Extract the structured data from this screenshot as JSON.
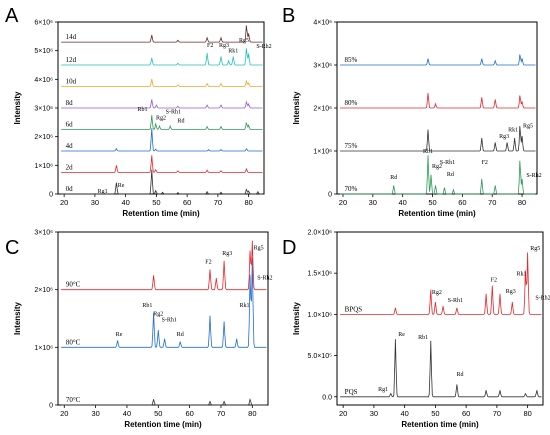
{
  "chart_data": [
    {
      "panel": "A",
      "type": "line",
      "xlabel": "Retention time (min)",
      "ylabel": "Intensity",
      "xlim": [
        18,
        85
      ],
      "xticks": [
        20,
        30,
        40,
        50,
        60,
        70,
        80
      ],
      "ylim": [
        0,
        6000000
      ],
      "yticks": [
        "0",
        "1×10⁶",
        "2×10⁶",
        "3×10⁶",
        "4×10⁶",
        "5×10⁶",
        "6×10⁶"
      ],
      "ytick_values": [
        0,
        1000000,
        2000000,
        3000000,
        4000000,
        5000000,
        6000000
      ],
      "series": [
        {
          "name": "0d",
          "color": "#333333",
          "baseline": 0,
          "peaks": [
            [
              37,
              400000
            ],
            [
              48.5,
              850000
            ],
            [
              49.8,
              120000
            ],
            [
              52,
              60000
            ],
            [
              57,
              50000
            ],
            [
              66.5,
              80000
            ],
            [
              71,
              60000
            ],
            [
              79.3,
              170000
            ],
            [
              80,
              100000
            ],
            [
              83,
              80000
            ]
          ]
        },
        {
          "name": "2d",
          "color": "#e8262b",
          "baseline": 750000,
          "peaks": [
            [
              37,
              250000
            ],
            [
              48.5,
              600000
            ],
            [
              49.8,
              100000
            ],
            [
              57,
              60000
            ],
            [
              66.5,
              80000
            ],
            [
              71,
              60000
            ],
            [
              79.3,
              130000
            ]
          ]
        },
        {
          "name": "4d",
          "color": "#1f6ed4",
          "baseline": 1500000,
          "peaks": [
            [
              37,
              80000
            ],
            [
              48.5,
              800000
            ],
            [
              49.8,
              60000
            ],
            [
              67,
              50000
            ],
            [
              71,
              50000
            ],
            [
              79.3,
              80000
            ]
          ]
        },
        {
          "name": "6d",
          "color": "#2e9a57",
          "baseline": 2250000,
          "peaks": [
            [
              48.5,
              500000
            ],
            [
              49.8,
              200000
            ],
            [
              51,
              120000
            ],
            [
              54.5,
              120000
            ],
            [
              66.5,
              100000
            ],
            [
              71,
              100000
            ],
            [
              79.3,
              250000
            ],
            [
              80,
              150000
            ]
          ]
        },
        {
          "name": "8d",
          "color": "#9b59d0",
          "baseline": 3000000,
          "peaks": [
            [
              48.5,
              300000
            ],
            [
              50,
              100000
            ],
            [
              57,
              60000
            ],
            [
              66.5,
              100000
            ],
            [
              71,
              100000
            ],
            [
              79.3,
              220000
            ],
            [
              80,
              140000
            ]
          ]
        },
        {
          "name": "10d",
          "color": "#f5a623",
          "baseline": 3750000,
          "peaks": [
            [
              48.5,
              260000
            ],
            [
              57,
              60000
            ],
            [
              66.5,
              100000
            ],
            [
              71,
              100000
            ],
            [
              79.3,
              200000
            ],
            [
              80,
              120000
            ]
          ]
        },
        {
          "name": "12d",
          "color": "#20c4b8",
          "baseline": 4500000,
          "peaks": [
            [
              48.5,
              250000
            ],
            [
              57,
              60000
            ],
            [
              66.5,
              420000
            ],
            [
              71,
              300000
            ],
            [
              73.5,
              150000
            ],
            [
              75,
              300000
            ],
            [
              79.3,
              600000
            ],
            [
              80,
              400000
            ]
          ]
        },
        {
          "name": "14d",
          "color": "#6b2a2a",
          "baseline": 5300000,
          "peaks": [
            [
              48.5,
              250000
            ],
            [
              57,
              60000
            ],
            [
              66.5,
              150000
            ],
            [
              71,
              150000
            ],
            [
              79.3,
              600000
            ],
            [
              80,
              300000
            ]
          ]
        }
      ],
      "annotations": [
        {
          "text": "Re",
          "x": 38.5,
          "y": 250000
        },
        {
          "text": "Rg1",
          "x": 32.5,
          "y": 40000
        },
        {
          "text": "Rb1",
          "x": 45.5,
          "y": 2900000
        },
        {
          "text": "Rg2",
          "x": 51.5,
          "y": 2600000
        },
        {
          "text": "S-Rh1",
          "x": 55.5,
          "y": 2800000
        },
        {
          "text": "Rd",
          "x": 58,
          "y": 2500000
        },
        {
          "text": "F2",
          "x": 67.5,
          "y": 5130000
        },
        {
          "text": "Rg3",
          "x": 72,
          "y": 5130000
        },
        {
          "text": "Rk1",
          "x": 75,
          "y": 4930000
        },
        {
          "text": "Rg5",
          "x": 78.5,
          "y": 5300000
        },
        {
          "text": "S-Rh2",
          "x": 85,
          "y": 5100000
        }
      ]
    },
    {
      "panel": "B",
      "type": "line",
      "xlabel": "Retention time (min)",
      "ylabel": "Intensity",
      "xlim": [
        18,
        85
      ],
      "xticks": [
        20,
        30,
        40,
        50,
        60,
        70,
        80
      ],
      "ylim": [
        0,
        4000000
      ],
      "yticks": [
        "0",
        "1×10⁶",
        "2×10⁶",
        "3×10⁶",
        "4×10⁶"
      ],
      "ytick_values": [
        0,
        1000000,
        2000000,
        3000000,
        4000000
      ],
      "series": [
        {
          "name": "70%",
          "color": "#2e9a57",
          "baseline": 0,
          "peaks": [
            [
              37,
              200000
            ],
            [
              48.5,
              900000
            ],
            [
              49.5,
              450000
            ],
            [
              51,
              200000
            ],
            [
              54,
              150000
            ],
            [
              57,
              100000
            ],
            [
              66.5,
              350000
            ],
            [
              71,
              200000
            ],
            [
              79.3,
              800000
            ],
            [
              80,
              350000
            ]
          ]
        },
        {
          "name": "75%",
          "color": "#333333",
          "baseline": 1000000,
          "peaks": [
            [
              48.5,
              500000
            ],
            [
              66.5,
              300000
            ],
            [
              71,
              200000
            ],
            [
              75,
              200000
            ],
            [
              77.5,
              300000
            ],
            [
              79.3,
              600000
            ],
            [
              80,
              350000
            ]
          ]
        },
        {
          "name": "80%",
          "color": "#e8262b",
          "baseline": 2000000,
          "peaks": [
            [
              48.5,
              350000
            ],
            [
              51,
              100000
            ],
            [
              66.5,
              250000
            ],
            [
              71,
              200000
            ],
            [
              79.3,
              300000
            ],
            [
              80,
              150000
            ]
          ]
        },
        {
          "name": "85%",
          "color": "#1f6ed4",
          "baseline": 3000000,
          "peaks": [
            [
              48.5,
              150000
            ],
            [
              66.5,
              150000
            ],
            [
              71,
              100000
            ],
            [
              79.3,
              250000
            ],
            [
              80,
              150000
            ]
          ]
        }
      ],
      "annotations": [
        {
          "text": "Rd",
          "x": 37,
          "y": 350000
        },
        {
          "text": "Rb1",
          "x": 48.5,
          "y": 950000
        },
        {
          "text": "Rg2",
          "x": 51.5,
          "y": 600000
        },
        {
          "text": "S-Rh1",
          "x": 55,
          "y": 700000
        },
        {
          "text": "Rd",
          "x": 56,
          "y": 420000
        },
        {
          "text": "F2",
          "x": 67.5,
          "y": 700000
        },
        {
          "text": "Rg3",
          "x": 74,
          "y": 1300000
        },
        {
          "text": "Rk1",
          "x": 77,
          "y": 1450000
        },
        {
          "text": "Rg5",
          "x": 82,
          "y": 1550000
        },
        {
          "text": "S-Rh2",
          "x": 84,
          "y": 400000
        }
      ]
    },
    {
      "panel": "C",
      "type": "line",
      "xlabel": "Retention time (min)",
      "ylabel": "Intensity",
      "xlim": [
        18,
        85
      ],
      "xticks": [
        20,
        30,
        40,
        50,
        60,
        70,
        80
      ],
      "ylim": [
        0,
        3000000
      ],
      "yticks": [
        "0",
        "1×10⁶",
        "2×10⁶",
        "3×10⁶"
      ],
      "ytick_values": [
        0,
        1000000,
        2000000,
        3000000
      ],
      "series": [
        {
          "name": "70°C",
          "color": "#333333",
          "baseline": 0,
          "peaks": [
            [
              48.5,
              100000
            ],
            [
              66.5,
              60000
            ],
            [
              71,
              60000
            ],
            [
              79.3,
              100000
            ]
          ]
        },
        {
          "name": "80°C",
          "color": "#1f6ed4",
          "baseline": 1000000,
          "peaks": [
            [
              37,
              120000
            ],
            [
              48.5,
              600000
            ],
            [
              50,
              300000
            ],
            [
              52,
              150000
            ],
            [
              57,
              100000
            ],
            [
              66.5,
              550000
            ],
            [
              71,
              450000
            ],
            [
              75,
              150000
            ],
            [
              79.3,
              1300000
            ],
            [
              80,
              1550000
            ]
          ]
        },
        {
          "name": "90°C",
          "color": "#e8262b",
          "baseline": 2000000,
          "peaks": [
            [
              48.5,
              250000
            ],
            [
              66.5,
              350000
            ],
            [
              68.5,
              200000
            ],
            [
              71,
              500000
            ],
            [
              79.3,
              700000
            ],
            [
              80,
              850000
            ]
          ]
        }
      ],
      "annotations": [
        {
          "text": "F2",
          "x": 66,
          "y": 2450000
        },
        {
          "text": "Rg3",
          "x": 72,
          "y": 2600000
        },
        {
          "text": "S-Rh2",
          "x": 84,
          "y": 2180000
        },
        {
          "text": "Re",
          "x": 37.5,
          "y": 1200000
        },
        {
          "text": "Rb1",
          "x": 46.5,
          "y": 1700000
        },
        {
          "text": "Rg2",
          "x": 50,
          "y": 1550000
        },
        {
          "text": "S-Rh1",
          "x": 53.5,
          "y": 1450000
        },
        {
          "text": "Rd",
          "x": 57,
          "y": 1200000
        },
        {
          "text": "Rg5",
          "x": 82,
          "y": 2700000
        },
        {
          "text": "Rk1",
          "x": 77.5,
          "y": 1700000
        }
      ]
    },
    {
      "panel": "D",
      "type": "line",
      "xlabel": "Retention time (min)",
      "ylabel": "Intensity",
      "xlim": [
        18,
        85
      ],
      "xticks": [
        20,
        30,
        40,
        50,
        60,
        70,
        80
      ],
      "ylim": [
        -100000,
        2000000
      ],
      "yticks": [
        "0.0",
        "5.0×10⁵",
        "1.0×10⁶",
        "1.5×10⁶",
        "2.0×10⁶"
      ],
      "ytick_values": [
        0,
        500000,
        1000000,
        1500000,
        2000000
      ],
      "series": [
        {
          "name": "PQS",
          "color": "#333333",
          "baseline": 0,
          "peaks": [
            [
              35.5,
              40000
            ],
            [
              37,
              700000
            ],
            [
              48.5,
              680000
            ],
            [
              57,
              150000
            ],
            [
              66.5,
              80000
            ],
            [
              71,
              80000
            ],
            [
              79.3,
              40000
            ],
            [
              83,
              80000
            ]
          ]
        },
        {
          "name": "BPQS",
          "color": "#e8262b",
          "baseline": 1000000,
          "peaks": [
            [
              37,
              80000
            ],
            [
              48.5,
              300000
            ],
            [
              50,
              150000
            ],
            [
              52.5,
              100000
            ],
            [
              57,
              80000
            ],
            [
              66.5,
              250000
            ],
            [
              68.5,
              350000
            ],
            [
              71,
              250000
            ],
            [
              75,
              150000
            ],
            [
              79.3,
              550000
            ],
            [
              80,
              750000
            ]
          ]
        }
      ],
      "annotations": [
        {
          "text": "Rg1",
          "x": 33,
          "y": 70000
        },
        {
          "text": "Re",
          "x": 39,
          "y": 740000
        },
        {
          "text": "Rb1",
          "x": 46,
          "y": 700000
        },
        {
          "text": "Rd",
          "x": 58,
          "y": 250000
        },
        {
          "text": "Rg2",
          "x": 50.5,
          "y": 1250000
        },
        {
          "text": "S-Rh1",
          "x": 56.5,
          "y": 1150000
        },
        {
          "text": "F2",
          "x": 69,
          "y": 1400000
        },
        {
          "text": "Rg3",
          "x": 74.5,
          "y": 1260000
        },
        {
          "text": "Rk1",
          "x": 78,
          "y": 1470000
        },
        {
          "text": "Rg5",
          "x": 82.5,
          "y": 1780000
        },
        {
          "text": "S-Rh2",
          "x": 85,
          "y": 1180000
        }
      ]
    }
  ]
}
